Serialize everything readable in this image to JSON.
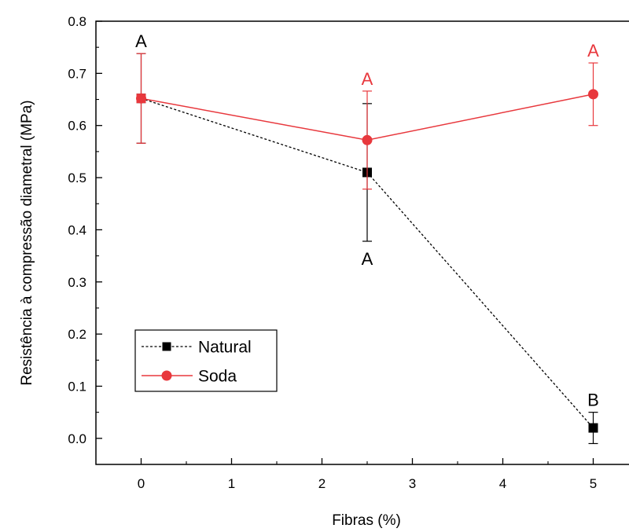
{
  "chart_data": {
    "type": "line",
    "title": "",
    "xlabel": "Fibras (%)",
    "ylabel": "Resistência à compressão diametral (MPa)",
    "xlim": [
      -0.5,
      5.5
    ],
    "ylim": [
      -0.05,
      0.8
    ],
    "xticks": [
      "0",
      "1",
      "2",
      "3",
      "4",
      "5"
    ],
    "yticks": [
      "0.0",
      "0.1",
      "0.2",
      "0.3",
      "0.4",
      "0.5",
      "0.6",
      "0.7",
      "0.8"
    ],
    "legend_position": "bottom-left",
    "series": [
      {
        "name": "Natural",
        "color": "#000000",
        "line_style": "dashed",
        "marker": "square",
        "x": [
          0,
          2.5,
          5
        ],
        "y": [
          0.652,
          0.51,
          0.02
        ],
        "error": [
          0.086,
          0.132,
          0.03
        ],
        "labels": [
          "A",
          "A",
          "B"
        ],
        "label_positions": [
          "above",
          "below",
          "above"
        ]
      },
      {
        "name": "Soda",
        "color": "#e8383d",
        "line_style": "solid",
        "marker": "circle",
        "x": [
          0,
          2.5,
          5
        ],
        "y": [
          0.652,
          0.572,
          0.66
        ],
        "error": [
          0.086,
          0.094,
          0.06
        ],
        "labels": [
          "",
          "A",
          "A"
        ],
        "label_positions": [
          "",
          "above",
          "above"
        ]
      }
    ]
  }
}
